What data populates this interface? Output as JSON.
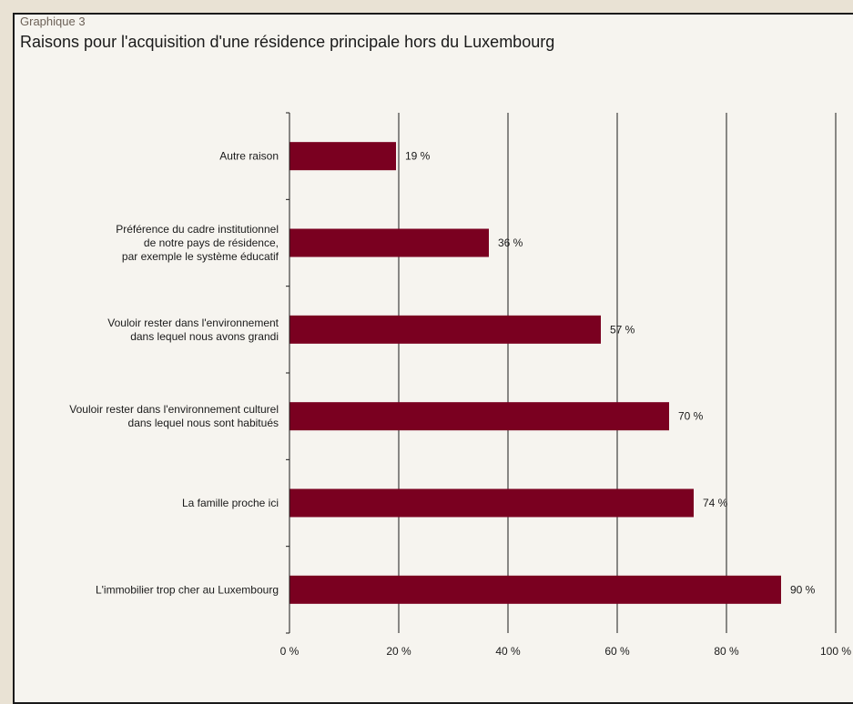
{
  "header": {
    "kicker": "Graphique 3",
    "title": "Raisons pour l'acquisition d'une résidence principale hors du Luxembourg"
  },
  "chart_data": {
    "type": "bar",
    "orientation": "horizontal",
    "title": "Raisons pour l'acquisition d'une résidence principale hors du Luxembourg",
    "xlabel": "",
    "ylabel": "",
    "xlim": [
      0,
      100
    ],
    "x_ticks": [
      0,
      20,
      40,
      60,
      80,
      100
    ],
    "x_tick_labels": [
      "0 %",
      "20 %",
      "40 %",
      "60 %",
      "80 %",
      "100 %"
    ],
    "grid": "vertical",
    "bar_color": "#7a0020",
    "categories": [
      [
        "Autre raison"
      ],
      [
        "Préférence du cadre institutionnel",
        "de notre pays de résidence,",
        "par exemple le système éducatif"
      ],
      [
        "Vouloir rester dans l'environnement",
        "dans lequel nous avons grandi"
      ],
      [
        "Vouloir rester dans l'environnement culturel",
        "dans lequel nous sont habitués"
      ],
      [
        "La famille proche ici"
      ],
      [
        "L'immobilier trop cher au Luxembourg"
      ]
    ],
    "values": [
      19.5,
      36.5,
      57,
      69.5,
      74,
      90
    ],
    "value_labels": [
      "19 %",
      "36 %",
      "57 %",
      "70 %",
      "74 %",
      "90 %"
    ]
  }
}
